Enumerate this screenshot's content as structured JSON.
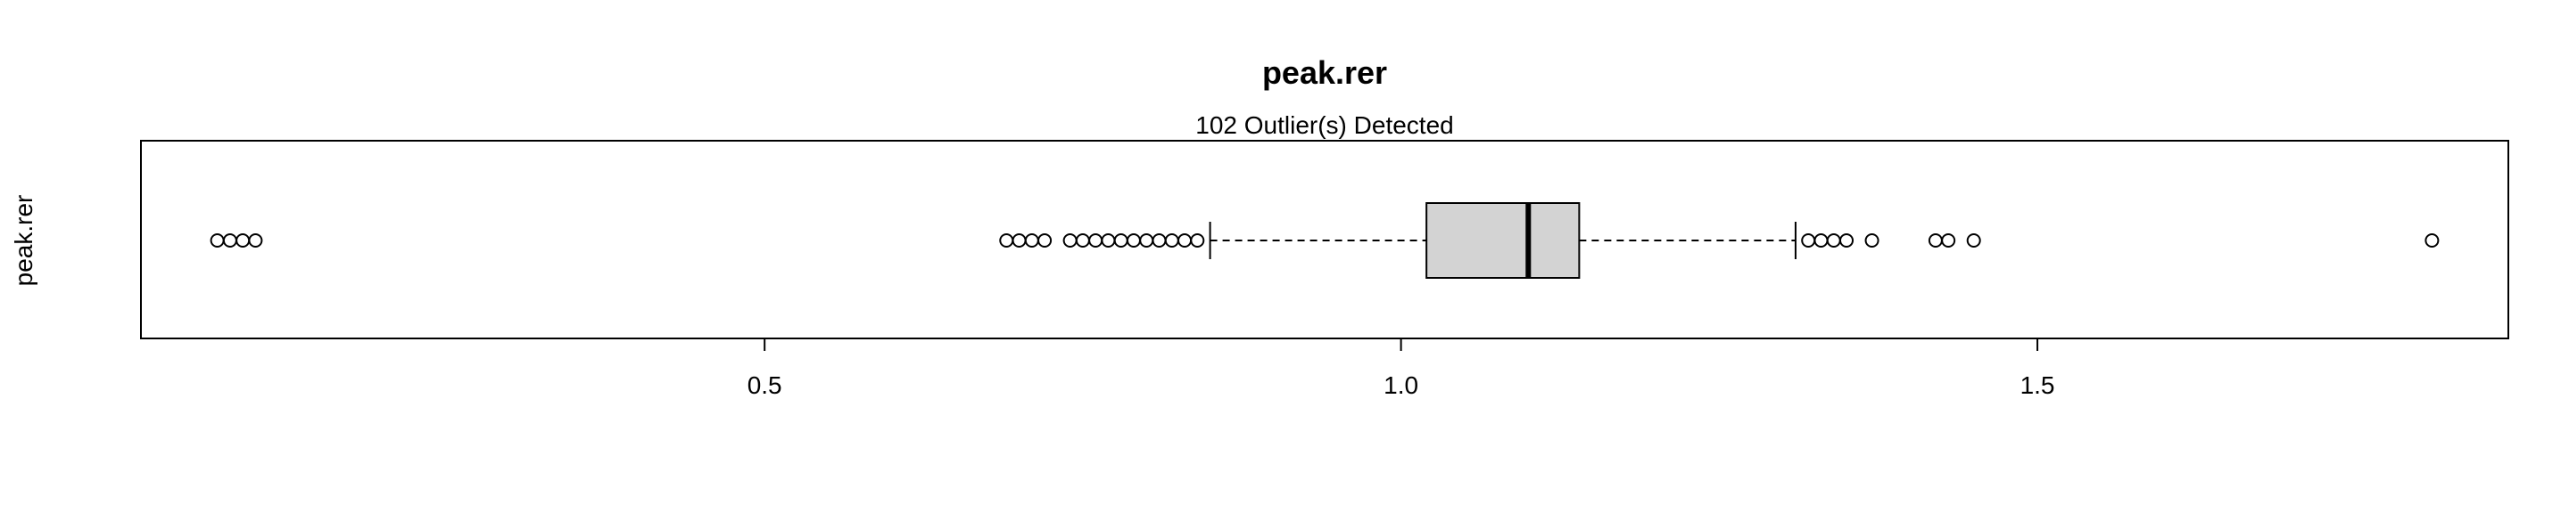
{
  "chart_data": {
    "type": "boxplot",
    "orientation": "horizontal",
    "title": "peak.rer",
    "subtitle": "102 Outlier(s) Detected",
    "ylabel": "peak.rer",
    "xlabel": "",
    "xlim": [
      0.01,
      1.87
    ],
    "x_ticks": [
      0.5,
      1.0,
      1.5
    ],
    "x_tick_labels": [
      "0.5",
      "1.0",
      "1.5"
    ],
    "grid": false,
    "box": {
      "q1": 1.02,
      "median": 1.1,
      "q3": 1.14,
      "whisker_low": 0.85,
      "whisker_high": 1.31,
      "fill_color": "#d3d3d3",
      "line_color": "#000000"
    },
    "outliers": [
      0.07,
      0.08,
      0.09,
      0.1,
      0.69,
      0.7,
      0.71,
      0.72,
      0.74,
      0.75,
      0.76,
      0.77,
      0.78,
      0.79,
      0.8,
      0.81,
      0.82,
      0.83,
      0.84,
      1.32,
      1.33,
      1.34,
      1.35,
      1.37,
      1.42,
      1.43,
      1.45,
      1.81
    ]
  }
}
